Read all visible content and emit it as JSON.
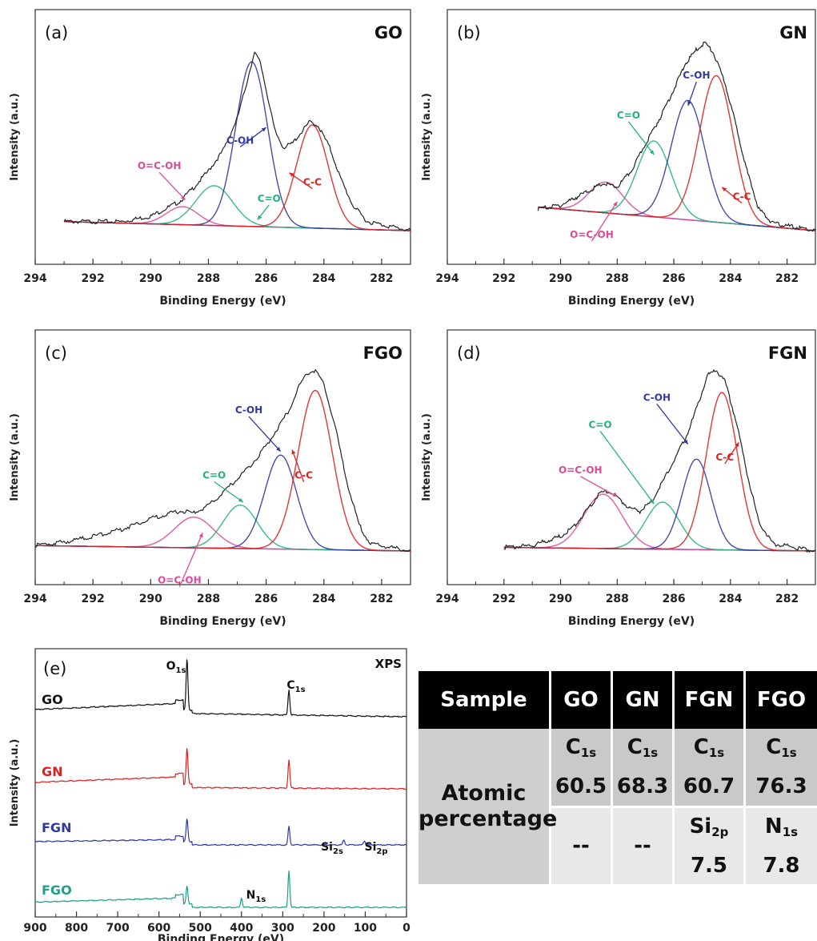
{
  "panels": [
    {
      "id": "a",
      "tag": "(a)",
      "sample": "GO",
      "xlabel": "Binding Energy (eV)",
      "ylabel": "Intensity (a.u.)",
      "xticks": [
        "294",
        "292",
        "290",
        "288",
        "286",
        "284",
        "282"
      ],
      "xlim": [
        294,
        281
      ],
      "baseline": [
        [
          293,
          0.05
        ],
        [
          281,
          0.0
        ]
      ],
      "envelope": [
        [
          293,
          0.05
        ],
        [
          291,
          0.05
        ],
        [
          290,
          0.08
        ],
        [
          289,
          0.16
        ],
        [
          288.5,
          0.24
        ],
        [
          288,
          0.33
        ],
        [
          287.5,
          0.44
        ],
        [
          287,
          0.62
        ],
        [
          286.7,
          0.8
        ],
        [
          286.5,
          0.93
        ],
        [
          286.4,
          0.98
        ],
        [
          286.2,
          0.93
        ],
        [
          286,
          0.78
        ],
        [
          285.7,
          0.55
        ],
        [
          285.4,
          0.46
        ],
        [
          285.1,
          0.48
        ],
        [
          284.8,
          0.54
        ],
        [
          284.5,
          0.6
        ],
        [
          284.2,
          0.58
        ],
        [
          283.8,
          0.46
        ],
        [
          283.4,
          0.28
        ],
        [
          283,
          0.14
        ],
        [
          282.5,
          0.05
        ],
        [
          281,
          0.0
        ]
      ],
      "components": [
        {
          "name": "O=C-OH",
          "center": 288.9,
          "height": 0.1,
          "fwhm": 1.3,
          "color": "#e0489b"
        },
        {
          "name": "C=O",
          "center": 287.8,
          "height": 0.22,
          "fwhm": 1.5,
          "color": "#27b17a"
        },
        {
          "name": "C-OH",
          "center": 286.5,
          "height": 0.91,
          "fwhm": 1.3,
          "color": "#2f3aa0"
        },
        {
          "name": "C-C",
          "center": 284.4,
          "height": 0.57,
          "fwhm": 1.3,
          "color": "#e02020"
        }
      ],
      "labels": [
        {
          "text": "O=C-OH",
          "at": [
            289.7,
            0.34
          ],
          "tip": [
            288.8,
            0.17
          ],
          "color": "#e0489b"
        },
        {
          "text": "C=O",
          "at": [
            285.9,
            0.16
          ],
          "tip": [
            286.3,
            0.06
          ],
          "color": "#27b17a"
        },
        {
          "text": "C-OH",
          "at": [
            286.9,
            0.48
          ],
          "tip": [
            286.0,
            0.57
          ],
          "color": "#2f3aa0"
        },
        {
          "text": "C-C",
          "at": [
            284.4,
            0.25
          ],
          "tip": [
            285.2,
            0.32
          ],
          "color": "#e02020"
        }
      ]
    },
    {
      "id": "b",
      "tag": "(b)",
      "sample": "GN",
      "xlabel": "Binding Energy (eV)",
      "ylabel": "Intensity (a.u.)",
      "xticks": [
        "294",
        "292",
        "290",
        "288",
        "286",
        "284",
        "282"
      ],
      "xlim": [
        294,
        281
      ],
      "baseline": [
        [
          290.8,
          0.13
        ],
        [
          281,
          0.0
        ]
      ],
      "envelope": [
        [
          290.8,
          0.12
        ],
        [
          290,
          0.14
        ],
        [
          289,
          0.22
        ],
        [
          288.5,
          0.26
        ],
        [
          288,
          0.24
        ],
        [
          287.5,
          0.33
        ],
        [
          287,
          0.48
        ],
        [
          286.5,
          0.62
        ],
        [
          286,
          0.78
        ],
        [
          285.6,
          0.92
        ],
        [
          285.2,
          1.0
        ],
        [
          284.9,
          1.04
        ],
        [
          284.6,
          0.98
        ],
        [
          284.2,
          0.82
        ],
        [
          283.8,
          0.58
        ],
        [
          283.4,
          0.32
        ],
        [
          283,
          0.12
        ],
        [
          282.5,
          0.04
        ],
        [
          281,
          0.0
        ]
      ],
      "components": [
        {
          "name": "O=C-OH",
          "center": 288.4,
          "height": 0.17,
          "fwhm": 1.4,
          "color": "#e0489b"
        },
        {
          "name": "C=O",
          "center": 286.7,
          "height": 0.42,
          "fwhm": 1.4,
          "color": "#27b17a"
        },
        {
          "name": "C-OH",
          "center": 285.5,
          "height": 0.66,
          "fwhm": 1.4,
          "color": "#2f3aa0"
        },
        {
          "name": "C-C",
          "center": 284.5,
          "height": 0.81,
          "fwhm": 1.4,
          "color": "#e02020"
        }
      ],
      "labels": [
        {
          "text": "O=C-OH",
          "at": [
            288.9,
            -0.04
          ],
          "tip": [
            288.0,
            0.16
          ],
          "color": "#e0489b"
        },
        {
          "text": "C=O",
          "at": [
            287.6,
            0.62
          ],
          "tip": [
            286.7,
            0.42
          ],
          "color": "#27b17a"
        },
        {
          "text": "C-OH",
          "at": [
            285.2,
            0.84
          ],
          "tip": [
            285.5,
            0.69
          ],
          "color": "#2f3aa0"
        },
        {
          "text": "C-C",
          "at": [
            283.6,
            0.17
          ],
          "tip": [
            284.3,
            0.24
          ],
          "color": "#e02020"
        }
      ]
    },
    {
      "id": "c",
      "tag": "(c)",
      "sample": "FGO",
      "xlabel": "Binding Energy (eV)",
      "ylabel": "Intensity (a.u.)",
      "xticks": [
        "294",
        "292",
        "290",
        "288",
        "286",
        "284",
        "282"
      ],
      "xlim": [
        294,
        281
      ],
      "baseline": [
        [
          294,
          0.03
        ],
        [
          281,
          0.0
        ]
      ],
      "envelope": [
        [
          294,
          0.03
        ],
        [
          293,
          0.05
        ],
        [
          292,
          0.08
        ],
        [
          291,
          0.12
        ],
        [
          290,
          0.18
        ],
        [
          289,
          0.22
        ],
        [
          288.5,
          0.21
        ],
        [
          288,
          0.25
        ],
        [
          287.5,
          0.32
        ],
        [
          287,
          0.4
        ],
        [
          286.5,
          0.48
        ],
        [
          286,
          0.58
        ],
        [
          285.6,
          0.68
        ],
        [
          285.2,
          0.78
        ],
        [
          284.9,
          0.9
        ],
        [
          284.6,
          0.98
        ],
        [
          284.3,
          1.0
        ],
        [
          284,
          0.92
        ],
        [
          283.6,
          0.68
        ],
        [
          283.2,
          0.38
        ],
        [
          282.8,
          0.15
        ],
        [
          282.4,
          0.04
        ],
        [
          281,
          0.0
        ]
      ],
      "components": [
        {
          "name": "O=C-OH",
          "center": 288.5,
          "height": 0.17,
          "fwhm": 1.6,
          "color": "#e0489b"
        },
        {
          "name": "C=O",
          "center": 286.9,
          "height": 0.24,
          "fwhm": 1.4,
          "color": "#27b17a"
        },
        {
          "name": "C-OH",
          "center": 285.5,
          "height": 0.52,
          "fwhm": 1.3,
          "color": "#2f3aa0"
        },
        {
          "name": "C-C",
          "center": 284.3,
          "height": 0.88,
          "fwhm": 1.4,
          "color": "#e02020"
        }
      ],
      "labels": [
        {
          "text": "O=C-OH",
          "at": [
            289.0,
            -0.18
          ],
          "tip": [
            288.2,
            0.1
          ],
          "color": "#e0489b"
        },
        {
          "text": "C=O",
          "at": [
            287.8,
            0.4
          ],
          "tip": [
            286.8,
            0.27
          ],
          "color": "#27b17a"
        },
        {
          "text": "C-OH",
          "at": [
            286.6,
            0.76
          ],
          "tip": [
            285.5,
            0.55
          ],
          "color": "#2f3aa0"
        },
        {
          "text": "C-C",
          "at": [
            284.7,
            0.4
          ],
          "tip": [
            285.1,
            0.56
          ],
          "color": "#e02020"
        }
      ]
    },
    {
      "id": "d",
      "tag": "(d)",
      "sample": "FGN",
      "xlabel": "Binding Energy (eV)",
      "ylabel": "Intensity (a.u.)",
      "xticks": [
        "294",
        "292",
        "290",
        "288",
        "286",
        "284",
        "282"
      ],
      "xlim": [
        294,
        281
      ],
      "baseline": [
        [
          292,
          0.02
        ],
        [
          281,
          0.0
        ]
      ],
      "envelope": [
        [
          292,
          0.02
        ],
        [
          291,
          0.03
        ],
        [
          290,
          0.08
        ],
        [
          289.5,
          0.14
        ],
        [
          289,
          0.24
        ],
        [
          288.6,
          0.32
        ],
        [
          288.3,
          0.33
        ],
        [
          288,
          0.3
        ],
        [
          287.6,
          0.24
        ],
        [
          287.2,
          0.22
        ],
        [
          286.8,
          0.27
        ],
        [
          286.4,
          0.38
        ],
        [
          286,
          0.5
        ],
        [
          285.6,
          0.62
        ],
        [
          285.3,
          0.74
        ],
        [
          285,
          0.88
        ],
        [
          284.8,
          0.97
        ],
        [
          284.5,
          1.0
        ],
        [
          284.2,
          0.94
        ],
        [
          283.8,
          0.72
        ],
        [
          283.4,
          0.42
        ],
        [
          283,
          0.16
        ],
        [
          282.5,
          0.04
        ],
        [
          281,
          0.0
        ]
      ],
      "components": [
        {
          "name": "O=C-OH",
          "center": 288.5,
          "height": 0.3,
          "fwhm": 1.6,
          "color": "#e0489b"
        },
        {
          "name": "C=O",
          "center": 286.4,
          "height": 0.26,
          "fwhm": 1.4,
          "color": "#27b17a"
        },
        {
          "name": "C-OH",
          "center": 285.2,
          "height": 0.5,
          "fwhm": 1.2,
          "color": "#2f3aa0"
        },
        {
          "name": "C-C",
          "center": 284.3,
          "height": 0.87,
          "fwhm": 1.3,
          "color": "#e02020"
        }
      ],
      "labels": [
        {
          "text": "O=C-OH",
          "at": [
            289.3,
            0.43
          ],
          "tip": [
            288.0,
            0.3
          ],
          "color": "#e0489b"
        },
        {
          "text": "C=O",
          "at": [
            288.6,
            0.68
          ],
          "tip": [
            286.7,
            0.26
          ],
          "color": "#27b17a"
        },
        {
          "text": "C-OH",
          "at": [
            286.6,
            0.83
          ],
          "tip": [
            285.5,
            0.59
          ],
          "color": "#2f3aa0"
        },
        {
          "text": "C-C",
          "at": [
            284.2,
            0.5
          ],
          "tip": [
            283.7,
            0.6
          ],
          "color": "#e02020"
        }
      ]
    }
  ],
  "survey": {
    "tag": "(e)",
    "title": "XPS",
    "xlabel": "Binding Energy (eV)",
    "ylabel": "Intensity (a.u.)",
    "xticks": [
      "900",
      "800",
      "700",
      "600",
      "500",
      "400",
      "300",
      "200",
      "100",
      "0"
    ],
    "xlim": [
      900,
      0
    ],
    "series": [
      {
        "name": "GO",
        "color": "#111111",
        "offset": 0.0,
        "peaks": [
          [
            532,
            0.78
          ],
          [
            285,
            0.38
          ]
        ],
        "bg_high": 0.18,
        "bg_low": 0.05
      },
      {
        "name": "GN",
        "color": "#e02020",
        "offset": -1.0,
        "peaks": [
          [
            532,
            0.55
          ],
          [
            285,
            0.42
          ]
        ],
        "bg_high": 0.16,
        "bg_low": 0.02
      },
      {
        "name": "FGN",
        "color": "#2f3aa0",
        "offset": -2.0,
        "peaks": [
          [
            532,
            0.34
          ],
          [
            285,
            0.28
          ],
          [
            152,
            0.07
          ],
          [
            102,
            0.06
          ]
        ],
        "bg_high": 0.06,
        "bg_low": 0.0
      },
      {
        "name": "FGO",
        "color": "#1f9e8a",
        "offset": -3.0,
        "peaks": [
          [
            532,
            0.28
          ],
          [
            400,
            0.14
          ],
          [
            285,
            0.55
          ]
        ],
        "bg_high": 0.12,
        "bg_low": 0.0
      }
    ],
    "peak_labels": [
      {
        "el": "O",
        "sub": "1s",
        "at": [
          555,
          1.0
        ]
      },
      {
        "el": "C",
        "sub": "1s",
        "at": [
          285,
          0.55
        ]
      },
      {
        "el": "Si",
        "sub": "2s",
        "at": [
          165,
          -1.7
        ]
      },
      {
        "el": "Si",
        "sub": "2p",
        "at": [
          100,
          -1.7
        ]
      },
      {
        "el": "N",
        "sub": "1s",
        "at": [
          400,
          -2.7
        ]
      }
    ]
  },
  "table": {
    "header": [
      "Sample",
      "GO",
      "GN",
      "FGN",
      "FGO"
    ],
    "row_label_line1": "Atomic",
    "row_label_line2": "percentage",
    "row1": [
      {
        "el": "C",
        "sub": "1s",
        "value": "60.5"
      },
      {
        "el": "C",
        "sub": "1s",
        "value": "68.3"
      },
      {
        "el": "C",
        "sub": "1s",
        "value": "60.7"
      },
      {
        "el": "C",
        "sub": "1s",
        "value": "76.3"
      }
    ],
    "row2": [
      {
        "el": "",
        "sub": "",
        "value": "--"
      },
      {
        "el": "",
        "sub": "",
        "value": "--"
      },
      {
        "el": "Si",
        "sub": "2p",
        "value": "7.5"
      },
      {
        "el": "N",
        "sub": "1s",
        "value": "7.8"
      }
    ]
  },
  "chart_data": [
    {
      "type": "line",
      "title": "GO",
      "xlabel": "Binding Energy (eV)",
      "ylabel": "Intensity (a.u.)",
      "xlim": [
        294,
        281
      ],
      "series": [
        {
          "name": "O=C-OH",
          "x": [
            288.9
          ]
        },
        {
          "name": "C=O",
          "x": [
            287.8
          ]
        },
        {
          "name": "C-OH",
          "x": [
            286.5
          ]
        },
        {
          "name": "C-C",
          "x": [
            284.4
          ]
        }
      ]
    },
    {
      "type": "line",
      "title": "GN",
      "xlabel": "Binding Energy (eV)",
      "ylabel": "Intensity (a.u.)",
      "xlim": [
        294,
        281
      ],
      "series": [
        {
          "name": "O=C-OH",
          "x": [
            288.4
          ]
        },
        {
          "name": "C=O",
          "x": [
            286.7
          ]
        },
        {
          "name": "C-OH",
          "x": [
            285.5
          ]
        },
        {
          "name": "C-C",
          "x": [
            284.5
          ]
        }
      ]
    },
    {
      "type": "line",
      "title": "FGO",
      "xlabel": "Binding Energy (eV)",
      "ylabel": "Intensity (a.u.)",
      "xlim": [
        294,
        281
      ],
      "series": [
        {
          "name": "O=C-OH",
          "x": [
            288.5
          ]
        },
        {
          "name": "C=O",
          "x": [
            286.9
          ]
        },
        {
          "name": "C-OH",
          "x": [
            285.5
          ]
        },
        {
          "name": "C-C",
          "x": [
            284.3
          ]
        }
      ]
    },
    {
      "type": "line",
      "title": "FGN",
      "xlabel": "Binding Energy (eV)",
      "ylabel": "Intensity (a.u.)",
      "xlim": [
        294,
        281
      ],
      "series": [
        {
          "name": "O=C-OH",
          "x": [
            288.5
          ]
        },
        {
          "name": "C=O",
          "x": [
            286.4
          ]
        },
        {
          "name": "C-OH",
          "x": [
            285.2
          ]
        },
        {
          "name": "C-C",
          "x": [
            284.3
          ]
        }
      ]
    },
    {
      "type": "line",
      "title": "XPS",
      "xlabel": "Binding Energy (eV)",
      "ylabel": "Intensity (a.u.)",
      "xlim": [
        900,
        0
      ],
      "series": [
        {
          "name": "GO"
        },
        {
          "name": "GN"
        },
        {
          "name": "FGN"
        },
        {
          "name": "FGO"
        }
      ]
    },
    {
      "type": "table",
      "columns": [
        "Sample",
        "GO",
        "GN",
        "FGN",
        "FGO"
      ],
      "rows": [
        [
          "Atomic percentage",
          "C1s 60.5",
          "C1s 68.3",
          "C1s 60.7",
          "C1s 76.3"
        ],
        [
          "Atomic percentage",
          "--",
          "--",
          "Si2p 7.5",
          "N1s 7.8"
        ]
      ]
    }
  ]
}
